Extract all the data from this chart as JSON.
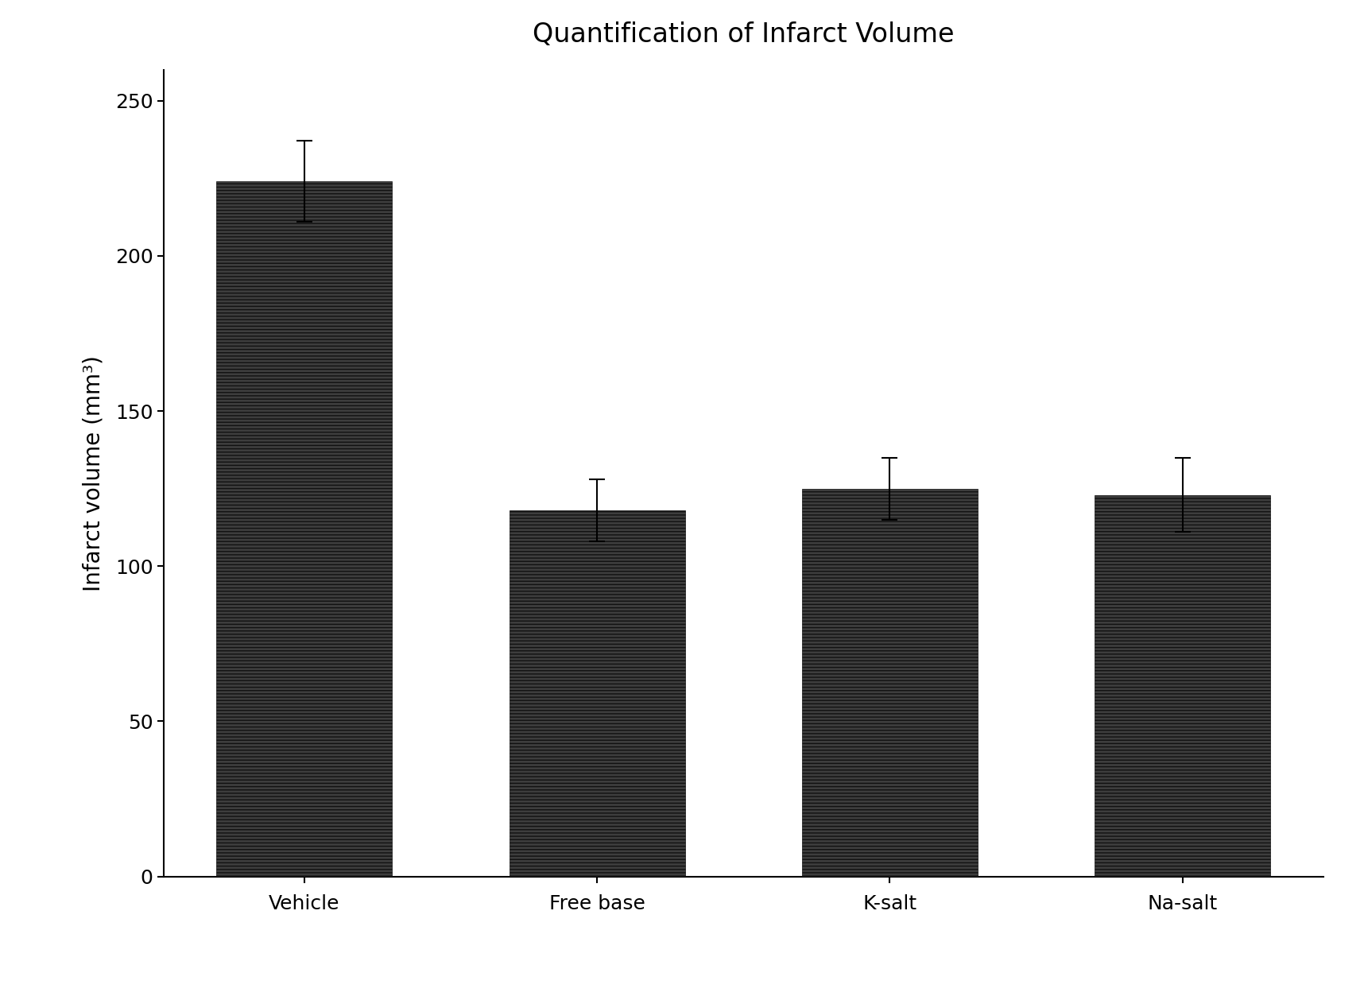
{
  "title": "Quantification of Infarct Volume",
  "categories": [
    "Vehicle",
    "Free base",
    "K-salt",
    "Na-salt"
  ],
  "values": [
    224,
    118,
    125,
    123
  ],
  "errors": [
    13,
    10,
    10,
    12
  ],
  "ylabel": "Infarct volume (mm³)",
  "ylim": [
    0,
    260
  ],
  "yticks": [
    0,
    50,
    100,
    150,
    200,
    250
  ],
  "bar_color": "#3d3d3d",
  "bar_width": 0.6,
  "title_fontsize": 24,
  "label_fontsize": 20,
  "tick_fontsize": 18,
  "background_color": "#ffffff",
  "figure_background": "#ffffff",
  "hatch": "----",
  "error_capsize": 7,
  "error_linewidth": 1.5
}
